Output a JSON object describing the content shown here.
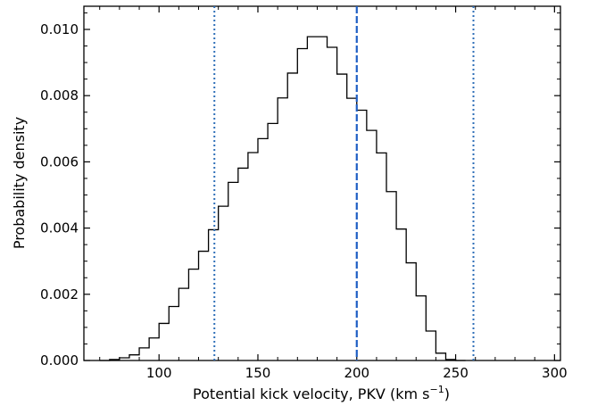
{
  "chart_data": {
    "type": "histogram",
    "xlabel_main": "Potential kick velocity, PKV (km s",
    "xlabel_sup": "−1",
    "xlabel_close": ")",
    "ylabel": "Probability density",
    "xlim": [
      62,
      303
    ],
    "ylim": [
      0,
      0.0107
    ],
    "x_ticks": [
      100,
      150,
      200,
      250,
      300
    ],
    "y_ticks": [
      0.0,
      0.002,
      0.004,
      0.006,
      0.008,
      0.01
    ],
    "y_tick_labels": [
      "0.000",
      "0.002",
      "0.004",
      "0.006",
      "0.008",
      "0.010"
    ],
    "bin_width": 5,
    "bins_start": 70,
    "densities": [
      0.0,
      3e-05,
      8e-05,
      0.00017,
      0.00038,
      0.00068,
      0.00112,
      0.00163,
      0.00218,
      0.00276,
      0.0033,
      0.00395,
      0.00466,
      0.00538,
      0.00581,
      0.00628,
      0.0067,
      0.00716,
      0.00793,
      0.00868,
      0.00942,
      0.00978,
      0.00978,
      0.00946,
      0.00865,
      0.00792,
      0.00756,
      0.00695,
      0.00627,
      0.0051,
      0.00397,
      0.00295,
      0.00195,
      0.00089,
      0.00022,
      3e-05,
      0.0
    ],
    "vlines": [
      {
        "x": 200,
        "style": "dashed",
        "color": "#1f5fc4"
      },
      {
        "x": 128,
        "style": "dotted",
        "color": "#2f6fb8"
      },
      {
        "x": 259,
        "style": "dotted",
        "color": "#2f6fb8"
      }
    ],
    "line_color": "#000000"
  }
}
